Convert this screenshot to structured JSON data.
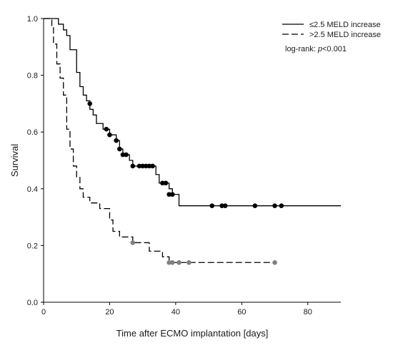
{
  "chart_data": {
    "type": "line",
    "subtype": "kaplan-meier",
    "xlabel": "Time after ECMO implantation [days]",
    "ylabel": "Survival",
    "xlim": [
      0,
      90
    ],
    "ylim": [
      0,
      1.0
    ],
    "xticks": [
      0,
      20,
      40,
      60,
      80
    ],
    "yticks": [
      0.0,
      0.2,
      0.4,
      0.6,
      0.8,
      1.0
    ],
    "xtick_labels": [
      "0",
      "20",
      "40",
      "60",
      "80"
    ],
    "ytick_labels": [
      "0.0",
      "0.2",
      "0.4",
      "0.6",
      "0.8",
      "1.0"
    ],
    "grid": false,
    "legend_position": "top-right",
    "annotation_prefix": "log-rank: ",
    "annotation_pvalue": "p",
    "annotation_suffix": "<0.001",
    "series": [
      {
        "name": "≤2.5 MELD increase",
        "line_style": "solid",
        "color": "#000000",
        "marker_color": "#000000",
        "steps": [
          [
            0,
            1.0
          ],
          [
            4.5,
            0.98
          ],
          [
            6,
            0.96
          ],
          [
            7,
            0.94
          ],
          [
            8,
            0.89
          ],
          [
            10,
            0.81
          ],
          [
            11,
            0.76
          ],
          [
            12,
            0.73
          ],
          [
            13,
            0.71
          ],
          [
            14,
            0.68
          ],
          [
            15,
            0.66
          ],
          [
            16,
            0.63
          ],
          [
            18,
            0.61
          ],
          [
            20,
            0.59
          ],
          [
            22,
            0.57
          ],
          [
            23,
            0.54
          ],
          [
            24,
            0.52
          ],
          [
            26,
            0.5
          ],
          [
            27,
            0.48
          ],
          [
            34,
            0.45
          ],
          [
            35,
            0.42
          ],
          [
            38,
            0.4
          ],
          [
            39,
            0.38
          ],
          [
            41,
            0.34
          ]
        ],
        "x_end": 90,
        "censored": [
          [
            14,
            0.7
          ],
          [
            19,
            0.61
          ],
          [
            20,
            0.59
          ],
          [
            22,
            0.57
          ],
          [
            23,
            0.54
          ],
          [
            24,
            0.52
          ],
          [
            25,
            0.52
          ],
          [
            27,
            0.48
          ],
          [
            29,
            0.48
          ],
          [
            30,
            0.48
          ],
          [
            31,
            0.48
          ],
          [
            32,
            0.48
          ],
          [
            33,
            0.48
          ],
          [
            36,
            0.42
          ],
          [
            37,
            0.42
          ],
          [
            38,
            0.38
          ],
          [
            39,
            0.38
          ],
          [
            51,
            0.34
          ],
          [
            54,
            0.34
          ],
          [
            55,
            0.34
          ],
          [
            64,
            0.34
          ],
          [
            70,
            0.34
          ],
          [
            72,
            0.34
          ]
        ]
      },
      {
        "name": ">2.5 MELD increase",
        "line_style": "dashed",
        "color": "#000000",
        "marker_color": "#808080",
        "steps": [
          [
            0,
            1.0
          ],
          [
            2.5,
            0.97
          ],
          [
            3,
            0.91
          ],
          [
            4,
            0.84
          ],
          [
            5,
            0.79
          ],
          [
            6,
            0.73
          ],
          [
            7,
            0.61
          ],
          [
            8,
            0.54
          ],
          [
            9,
            0.48
          ],
          [
            10,
            0.44
          ],
          [
            11,
            0.4
          ],
          [
            12,
            0.37
          ],
          [
            14,
            0.35
          ],
          [
            16,
            0.35
          ],
          [
            17,
            0.33
          ],
          [
            20,
            0.29
          ],
          [
            21,
            0.25
          ],
          [
            23,
            0.23
          ],
          [
            27,
            0.21
          ],
          [
            32,
            0.18
          ],
          [
            36,
            0.16
          ],
          [
            38,
            0.14
          ]
        ],
        "x_end": 70,
        "censored": [
          [
            27,
            0.21
          ],
          [
            38,
            0.14
          ],
          [
            39,
            0.14
          ],
          [
            41,
            0.14
          ],
          [
            44,
            0.14
          ],
          [
            70,
            0.14
          ]
        ]
      }
    ]
  }
}
